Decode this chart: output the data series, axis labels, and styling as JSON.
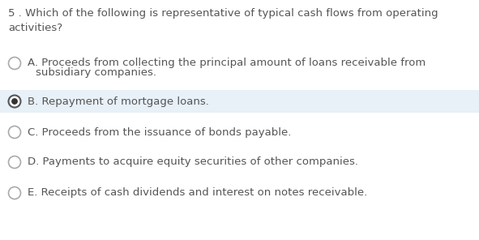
{
  "background_color": "#ffffff",
  "question_text": "5 . Which of the following is representative of typical cash flows from operating\nactivities?",
  "question_fontsize": 9.5,
  "question_color": "#555555",
  "options": [
    {
      "label": "A",
      "line1": "A. Proceeds from collecting the principal amount of loans receivable from",
      "line2": "   subsidiary companies.",
      "two_lines": true,
      "selected": false,
      "highlight": false
    },
    {
      "label": "B",
      "line1": "B. Repayment of mortgage loans.",
      "line2": "",
      "two_lines": false,
      "selected": true,
      "highlight": true
    },
    {
      "label": "C",
      "line1": "C. Proceeds from the issuance of bonds payable.",
      "line2": "",
      "two_lines": false,
      "selected": false,
      "highlight": false
    },
    {
      "label": "D",
      "line1": "D. Payments to acquire equity securities of other companies.",
      "line2": "",
      "two_lines": false,
      "selected": false,
      "highlight": false
    },
    {
      "label": "E",
      "line1": "E. Receipts of cash dividends and interest on notes receivable.",
      "line2": "",
      "two_lines": false,
      "selected": false,
      "highlight": false
    }
  ],
  "option_fontsize": 9.5,
  "option_color": "#555555",
  "highlight_color": "#e8f0f8",
  "radio_outer_color": "#aaaaaa",
  "radio_selected_outer": "#555555",
  "radio_selected_inner": "#333333"
}
